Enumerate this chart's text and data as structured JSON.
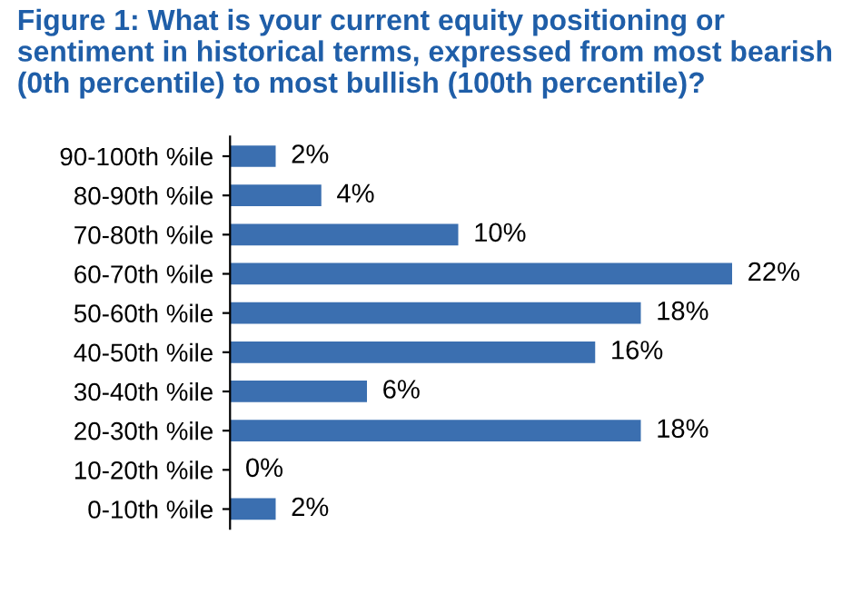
{
  "chart_data": {
    "type": "bar",
    "orientation": "horizontal",
    "title": "Figure 1: What is your current equity positioning or sentiment in historical terms, expressed from most bearish (0th percentile) to most bullish (100th percentile)?",
    "categories": [
      "90-100th %ile",
      "80-90th %ile",
      "70-80th %ile",
      "60-70th %ile",
      "50-60th %ile",
      "40-50th %ile",
      "30-40th %ile",
      "20-30th %ile",
      "10-20th %ile",
      "0-10th %ile"
    ],
    "values": [
      2,
      4,
      10,
      22,
      18,
      16,
      6,
      18,
      0,
      2
    ],
    "value_labels": [
      "2%",
      "4%",
      "10%",
      "22%",
      "18%",
      "16%",
      "6%",
      "18%",
      "0%",
      "2%"
    ],
    "color": "#3b6fb0"
  }
}
